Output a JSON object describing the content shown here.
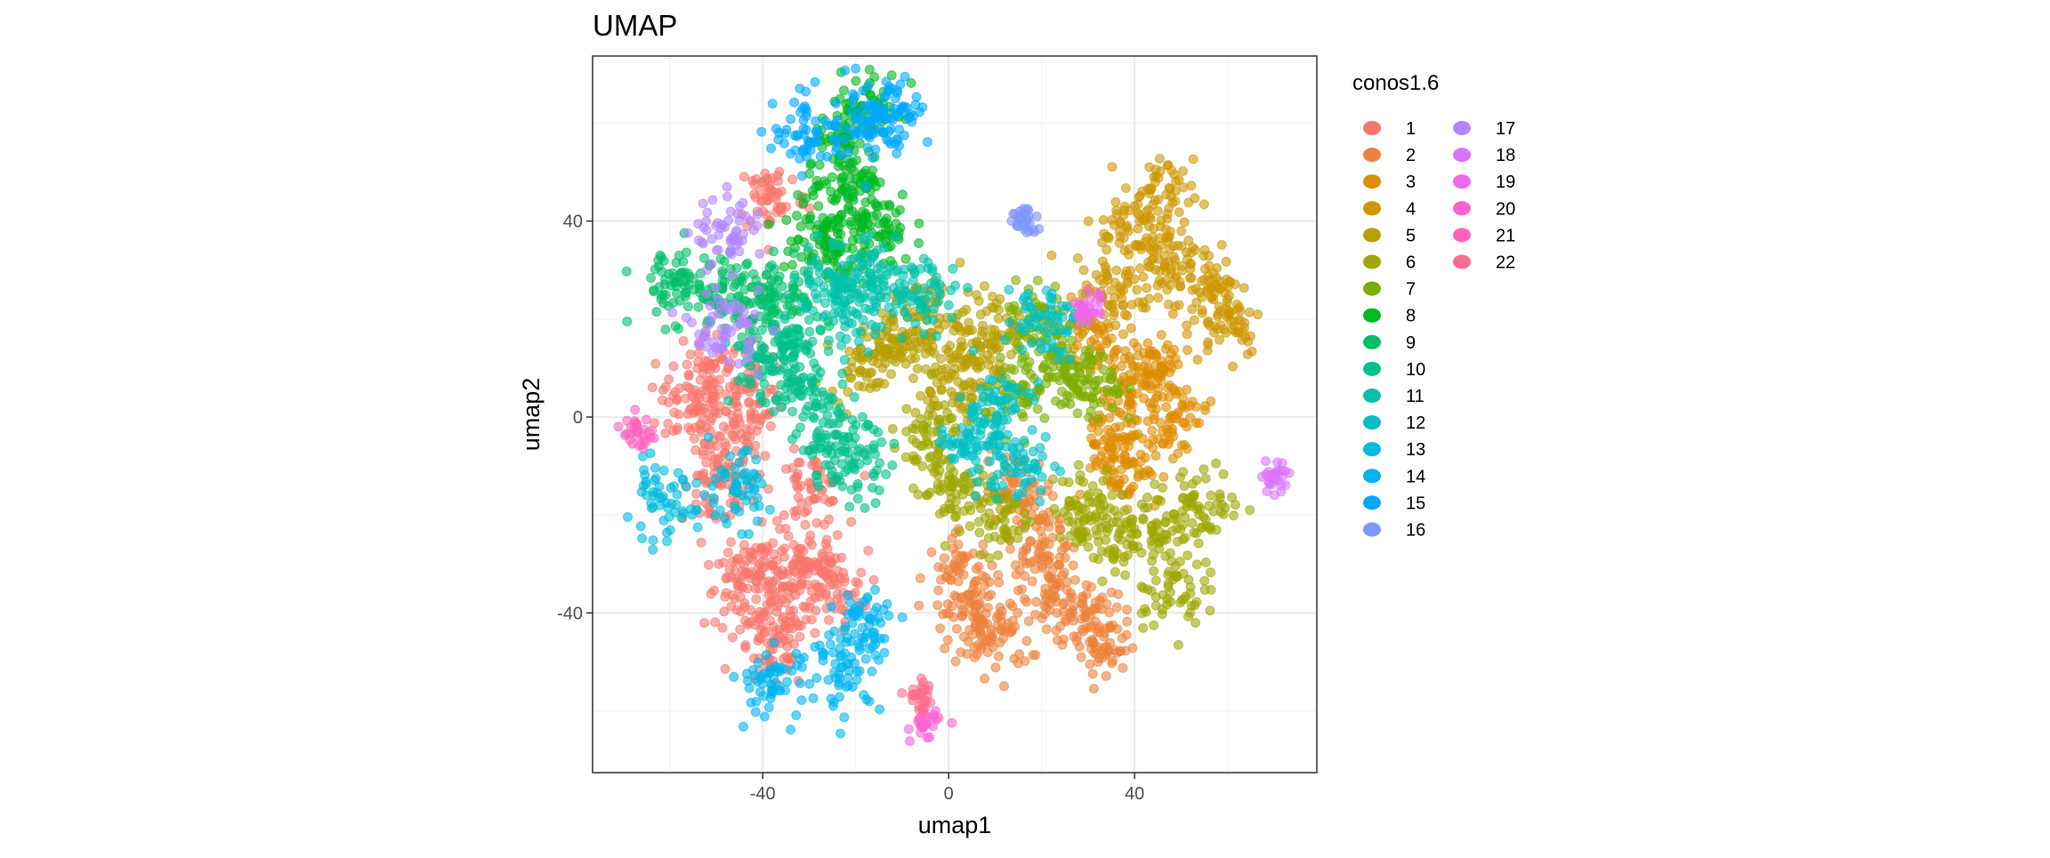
{
  "chart_data": {
    "type": "scatter",
    "title": "UMAP",
    "xlabel": "umap1",
    "ylabel": "umap2",
    "xlim": [
      -76.6,
      79.2
    ],
    "ylim": [
      -72.6,
      73.7
    ],
    "x_ticks": [
      "-40",
      "0",
      "40"
    ],
    "x_tick_values": [
      -40,
      0,
      40
    ],
    "y_ticks": [
      "40",
      "0",
      "-40"
    ],
    "y_tick_values": [
      40,
      0,
      -40
    ],
    "minor_grid": [
      -60,
      -20,
      20,
      60
    ],
    "grid": true,
    "point_alpha": 0.6,
    "legend": {
      "title": "conos1.6",
      "placement": "right",
      "columns": 2
    },
    "series": [
      {
        "name": "1",
        "color": "#F8766D",
        "points": [
          [
            -45,
            -5
          ],
          [
            -50,
            -15
          ],
          [
            -55,
            2
          ],
          [
            -40,
            -30
          ],
          [
            -35,
            -38
          ],
          [
            -45,
            -35
          ],
          [
            -30,
            -30
          ],
          [
            -38,
            -48
          ],
          [
            -42,
            5
          ],
          [
            -30,
            -15
          ],
          [
            -25,
            -35
          ],
          [
            -38,
            45
          ],
          [
            -52,
            10
          ]
        ]
      },
      {
        "name": "2",
        "color": "#EC823C",
        "points": [
          [
            20,
            -25
          ],
          [
            28,
            -40
          ],
          [
            33,
            -47
          ],
          [
            10,
            -45
          ],
          [
            5,
            -40
          ],
          [
            15,
            -15
          ],
          [
            22,
            -35
          ],
          [
            3,
            -32
          ]
        ]
      },
      {
        "name": "3",
        "color": "#DE8C00",
        "points": [
          [
            40,
            5
          ],
          [
            35,
            -5
          ],
          [
            45,
            10
          ],
          [
            32,
            15
          ],
          [
            48,
            0
          ],
          [
            38,
            -10
          ]
        ]
      },
      {
        "name": "4",
        "color": "#CD9600",
        "points": [
          [
            45,
            30
          ],
          [
            45,
            45
          ],
          [
            55,
            28
          ],
          [
            40,
            38
          ],
          [
            60,
            20
          ],
          [
            35,
            25
          ]
        ]
      },
      {
        "name": "5",
        "color": "#B79F00",
        "points": [
          [
            -10,
            15
          ],
          [
            5,
            12
          ],
          [
            -18,
            12
          ],
          [
            0,
            5
          ],
          [
            -5,
            20
          ],
          [
            10,
            18
          ]
        ]
      },
      {
        "name": "6",
        "color": "#9DA700",
        "points": [
          [
            0,
            -15
          ],
          [
            10,
            -20
          ],
          [
            -5,
            -5
          ],
          [
            35,
            -25
          ],
          [
            45,
            -22
          ],
          [
            55,
            -18
          ],
          [
            30,
            -18
          ],
          [
            47,
            -35
          ]
        ]
      },
      {
        "name": "7",
        "color": "#7CAE00",
        "points": [
          [
            25,
            10
          ],
          [
            20,
            20
          ],
          [
            30,
            5
          ],
          [
            15,
            5
          ]
        ]
      },
      {
        "name": "8",
        "color": "#00B81F",
        "points": [
          [
            -22,
            55
          ],
          [
            -20,
            45
          ],
          [
            -15,
            38
          ],
          [
            -25,
            35
          ],
          [
            -28,
            40
          ],
          [
            -17,
            63
          ]
        ]
      },
      {
        "name": "9",
        "color": "#00BE67",
        "points": [
          [
            -60,
            27
          ],
          [
            -50,
            26
          ],
          [
            -42,
            22
          ],
          [
            -35,
            25
          ]
        ]
      },
      {
        "name": "10",
        "color": "#00C08B",
        "points": [
          [
            -35,
            15
          ],
          [
            -30,
            5
          ],
          [
            -40,
            10
          ],
          [
            -25,
            -5
          ],
          [
            -20,
            -10
          ]
        ]
      },
      {
        "name": "11",
        "color": "#00C1AA",
        "points": [
          [
            -15,
            30
          ],
          [
            -5,
            25
          ],
          [
            -20,
            22
          ],
          [
            -25,
            28
          ]
        ]
      },
      {
        "name": "12",
        "color": "#00BFC4",
        "points": [
          [
            5,
            -5
          ],
          [
            15,
            -10
          ],
          [
            20,
            20
          ],
          [
            10,
            2
          ]
        ]
      },
      {
        "name": "13",
        "color": "#00BBDC",
        "points": [
          [
            -46,
            -15
          ],
          [
            -62,
            -18
          ]
        ]
      },
      {
        "name": "14",
        "color": "#00B4F0",
        "points": [
          [
            -38,
            -54
          ],
          [
            -22,
            -52
          ],
          [
            -18,
            -42
          ]
        ]
      },
      {
        "name": "15",
        "color": "#00A9FF",
        "points": [
          [
            -12,
            63
          ],
          [
            -18,
            60
          ],
          [
            -30,
            58
          ]
        ]
      },
      {
        "name": "16",
        "color": "#7F96FF",
        "points": [
          [
            16,
            40
          ]
        ]
      },
      {
        "name": "17",
        "color": "#B385FF",
        "points": [
          [
            -47,
            37
          ],
          [
            -48,
            18
          ]
        ]
      },
      {
        "name": "18",
        "color": "#D874FD",
        "points": [
          [
            70,
            -12
          ]
        ]
      },
      {
        "name": "19",
        "color": "#EF67EB",
        "points": [
          [
            30,
            22
          ]
        ]
      },
      {
        "name": "20",
        "color": "#FD61D1",
        "points": [
          [
            -5,
            -63
          ]
        ]
      },
      {
        "name": "21",
        "color": "#FF62BC",
        "points": [
          [
            -67,
            -3
          ]
        ]
      },
      {
        "name": "22",
        "color": "#FF6C91",
        "points": [
          [
            -6,
            -57
          ]
        ]
      }
    ]
  }
}
